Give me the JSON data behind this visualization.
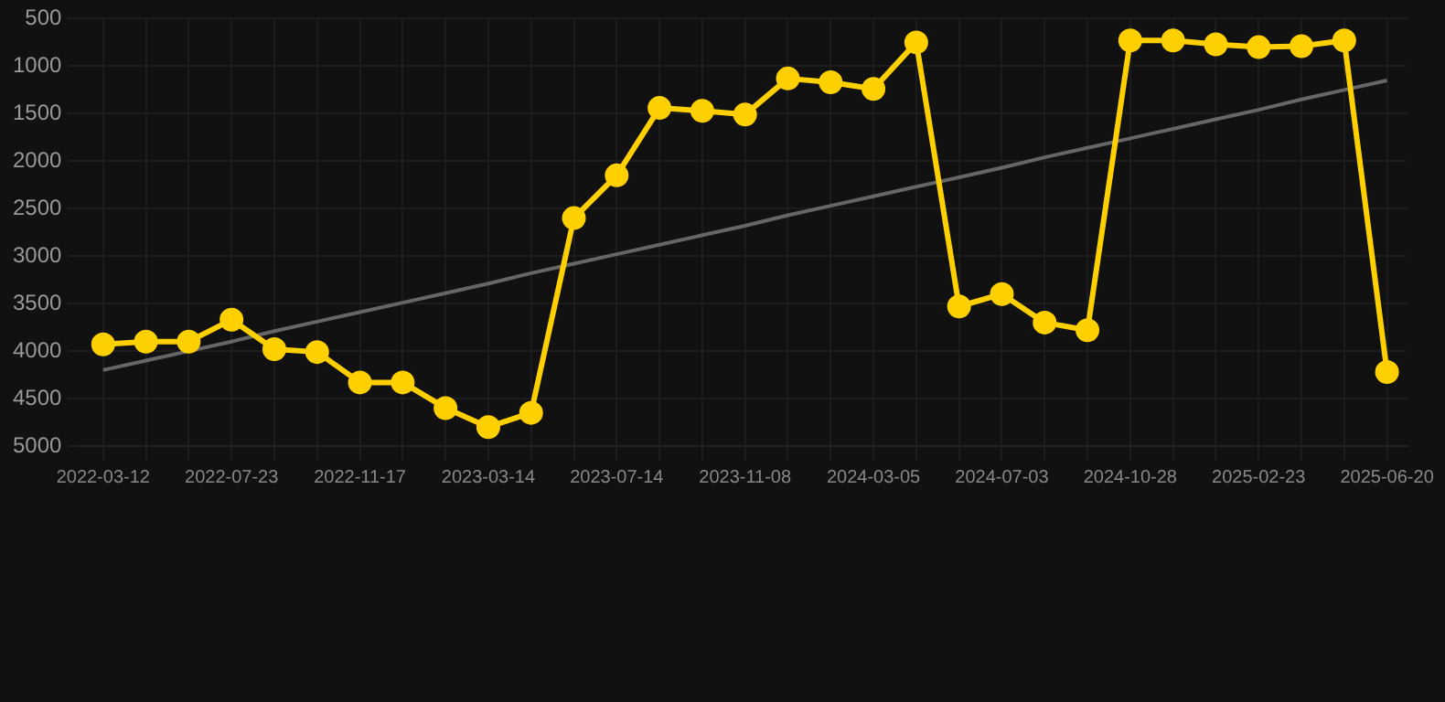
{
  "chart_data": {
    "type": "line",
    "categories": [
      "2022-03-12",
      null,
      null,
      "2022-07-23",
      null,
      null,
      "2022-11-17",
      null,
      null,
      "2023-03-14",
      null,
      null,
      "2023-07-14",
      null,
      null,
      "2023-11-08",
      null,
      null,
      "2024-03-05",
      null,
      null,
      "2024-07-03",
      null,
      null,
      "2024-10-28",
      null,
      null,
      "2025-02-23",
      null,
      null,
      "2025-06-20"
    ],
    "series": [
      {
        "color": "#ffd000",
        "marker": "circle",
        "values": [
          3930,
          3900,
          3900,
          3670,
          3980,
          4010,
          4330,
          4330,
          4600,
          4800,
          4650,
          2600,
          2150,
          1440,
          1470,
          1510,
          1130,
          1170,
          1240,
          750,
          3530,
          3400,
          3700,
          3780,
          730,
          730,
          770,
          800,
          790,
          730,
          4220
        ]
      },
      {
        "type": "line",
        "color": "#666666",
        "marker": "none",
        "values": [
          4200,
          4100,
          4000,
          3900,
          3790,
          3690,
          3590,
          3490,
          3390,
          3290,
          3180,
          3080,
          2980,
          2880,
          2780,
          2680,
          2570,
          2470,
          2370,
          2270,
          2170,
          2070,
          1960,
          1860,
          1760,
          1660,
          1560,
          1460,
          1350,
          1250,
          1150
        ]
      }
    ],
    "ylim": [
      5000,
      500
    ],
    "yticks": [
      500,
      1000,
      1500,
      2000,
      2500,
      3000,
      3500,
      4000,
      4500,
      5000
    ],
    "grid": true,
    "legend": false
  }
}
